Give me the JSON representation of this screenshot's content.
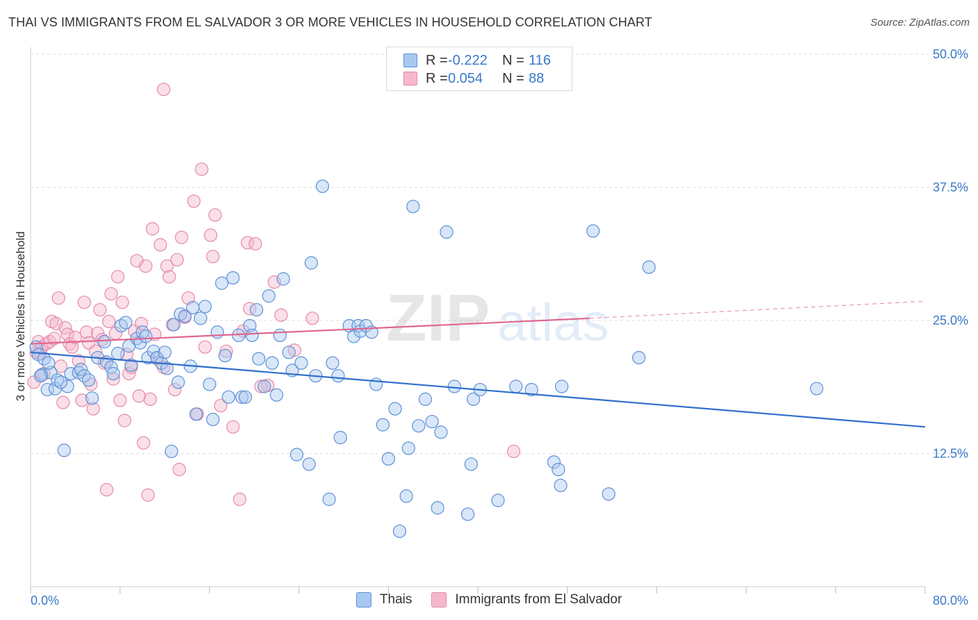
{
  "title": "THAI VS IMMIGRANTS FROM EL SALVADOR 3 OR MORE VEHICLES IN HOUSEHOLD CORRELATION CHART",
  "source_label": "Source:",
  "source_name": "ZipAtlas.com",
  "watermark": {
    "zip": "ZIP",
    "atlas": "atlas"
  },
  "colors": {
    "blue_fill": "#a8c8f0",
    "blue_stroke": "#5d90d6",
    "blue_line": "#2f6fcc",
    "pink_fill": "#f5b8cb",
    "pink_stroke": "#e48aa8",
    "pink_line": "#e0668f",
    "axis_text": "#3a78c9",
    "grid": "#dddddd"
  },
  "legend": {
    "rows": [
      {
        "r_label": "R =",
        "r_value": "-0.222",
        "n_label": "N =",
        "n_value": "116"
      },
      {
        "r_label": "R =",
        "r_value": "0.054",
        "n_label": "N =",
        "n_value": "88"
      }
    ]
  },
  "bottom_legend": {
    "series1": "Thais",
    "series2": "Immigrants from El Salvador"
  },
  "chart_data": {
    "type": "scatter",
    "title": "THAI VS IMMIGRANTS FROM EL SALVADOR 3 OR MORE VEHICLES IN HOUSEHOLD CORRELATION CHART",
    "xlabel": "",
    "ylabel": "3 or more Vehicles in Household",
    "xlim": [
      0,
      80
    ],
    "ylim": [
      0,
      50
    ],
    "x_tick_labels": [
      "0.0%",
      "80.0%"
    ],
    "y_ticks": [
      12.5,
      25.0,
      37.5,
      50.0
    ],
    "y_tick_labels": [
      "12.5%",
      "25.0%",
      "37.5%",
      "50.0%"
    ],
    "grid": true,
    "legend_position": "top-center",
    "series": [
      {
        "name": "Thais",
        "R": -0.222,
        "N": 116,
        "trend": {
          "x": [
            0,
            80
          ],
          "y": [
            22.0,
            15.0
          ]
        },
        "points": [
          [
            0.5,
            22.5
          ],
          [
            0.7,
            21.8
          ],
          [
            1.0,
            19.9
          ],
          [
            1.2,
            21.4
          ],
          [
            1.5,
            18.5
          ],
          [
            1.8,
            20.1
          ],
          [
            2.2,
            18.6
          ],
          [
            2.4,
            19.4
          ],
          [
            3.0,
            12.8
          ],
          [
            3.3,
            18.8
          ],
          [
            3.6,
            20.0
          ],
          [
            4.3,
            20.1
          ],
          [
            4.5,
            20.4
          ],
          [
            4.8,
            19.8
          ],
          [
            5.2,
            19.4
          ],
          [
            5.5,
            17.7
          ],
          [
            6.0,
            21.5
          ],
          [
            6.6,
            23.0
          ],
          [
            6.8,
            21.1
          ],
          [
            7.2,
            20.6
          ],
          [
            7.4,
            20.0
          ],
          [
            7.8,
            21.9
          ],
          [
            8.1,
            24.5
          ],
          [
            8.5,
            24.8
          ],
          [
            8.8,
            22.6
          ],
          [
            9.0,
            20.8
          ],
          [
            9.5,
            23.3
          ],
          [
            9.8,
            22.9
          ],
          [
            10.0,
            23.9
          ],
          [
            10.3,
            23.5
          ],
          [
            10.5,
            21.5
          ],
          [
            11.0,
            22.1
          ],
          [
            11.3,
            21.5
          ],
          [
            11.7,
            21.0
          ],
          [
            12.0,
            22.0
          ],
          [
            12.2,
            20.5
          ],
          [
            12.6,
            12.7
          ],
          [
            12.8,
            24.6
          ],
          [
            13.2,
            19.2
          ],
          [
            13.4,
            25.6
          ],
          [
            13.8,
            25.4
          ],
          [
            14.3,
            20.7
          ],
          [
            14.5,
            26.2
          ],
          [
            14.8,
            16.2
          ],
          [
            15.2,
            25.2
          ],
          [
            15.6,
            26.3
          ],
          [
            16.0,
            19.0
          ],
          [
            16.3,
            15.7
          ],
          [
            16.7,
            23.9
          ],
          [
            17.1,
            28.5
          ],
          [
            17.4,
            21.7
          ],
          [
            17.7,
            17.8
          ],
          [
            18.1,
            29.0
          ],
          [
            18.6,
            23.6
          ],
          [
            18.9,
            17.8
          ],
          [
            19.2,
            17.8
          ],
          [
            19.6,
            24.5
          ],
          [
            19.8,
            23.6
          ],
          [
            20.2,
            26.0
          ],
          [
            20.4,
            21.4
          ],
          [
            20.9,
            18.8
          ],
          [
            21.3,
            27.3
          ],
          [
            21.6,
            21.0
          ],
          [
            22.0,
            18.0
          ],
          [
            22.3,
            23.6
          ],
          [
            22.6,
            28.9
          ],
          [
            23.1,
            22.0
          ],
          [
            23.4,
            20.3
          ],
          [
            23.8,
            12.4
          ],
          [
            24.2,
            21.0
          ],
          [
            24.9,
            11.5
          ],
          [
            25.1,
            30.4
          ],
          [
            25.5,
            19.8
          ],
          [
            26.1,
            37.6
          ],
          [
            26.7,
            8.2
          ],
          [
            27.0,
            21.0
          ],
          [
            27.5,
            19.8
          ],
          [
            27.7,
            14.0
          ],
          [
            28.5,
            24.5
          ],
          [
            28.9,
            23.5
          ],
          [
            29.3,
            24.5
          ],
          [
            29.5,
            24.0
          ],
          [
            30.0,
            24.5
          ],
          [
            30.5,
            23.9
          ],
          [
            30.9,
            19.0
          ],
          [
            31.5,
            15.2
          ],
          [
            32.0,
            12.0
          ],
          [
            32.6,
            16.7
          ],
          [
            33.0,
            5.2
          ],
          [
            33.6,
            8.5
          ],
          [
            33.8,
            13.0
          ],
          [
            34.2,
            35.7
          ],
          [
            34.7,
            15.1
          ],
          [
            35.3,
            17.6
          ],
          [
            35.9,
            15.5
          ],
          [
            36.4,
            7.4
          ],
          [
            36.7,
            14.5
          ],
          [
            37.2,
            33.3
          ],
          [
            37.9,
            18.8
          ],
          [
            39.1,
            6.8
          ],
          [
            39.4,
            11.5
          ],
          [
            39.6,
            17.6
          ],
          [
            40.2,
            18.5
          ],
          [
            41.8,
            8.1
          ],
          [
            43.4,
            18.8
          ],
          [
            44.8,
            18.5
          ],
          [
            46.8,
            11.7
          ],
          [
            47.2,
            11.0
          ],
          [
            47.4,
            9.5
          ],
          [
            47.5,
            18.8
          ],
          [
            50.3,
            33.4
          ],
          [
            51.7,
            8.7
          ],
          [
            54.4,
            21.5
          ],
          [
            55.3,
            30.0
          ],
          [
            70.3,
            18.6
          ],
          [
            0.9,
            19.8
          ],
          [
            1.6,
            21.0
          ],
          [
            2.7,
            19.2
          ]
        ]
      },
      {
        "name": "Immigrants from El Salvador",
        "R": 0.054,
        "N": 88,
        "trend": {
          "x": [
            0,
            50
          ],
          "y": [
            22.8,
            25.2
          ]
        },
        "trend_dashed": {
          "x": [
            50,
            80
          ],
          "y": [
            25.2,
            26.8
          ]
        },
        "points": [
          [
            0.3,
            19.2
          ],
          [
            0.5,
            22.0
          ],
          [
            0.7,
            23.0
          ],
          [
            0.9,
            21.9
          ],
          [
            1.0,
            22.5
          ],
          [
            1.2,
            20.0
          ],
          [
            1.4,
            22.8
          ],
          [
            1.7,
            23.0
          ],
          [
            1.9,
            24.9
          ],
          [
            2.1,
            23.3
          ],
          [
            2.3,
            24.7
          ],
          [
            2.5,
            27.1
          ],
          [
            2.7,
            20.7
          ],
          [
            2.9,
            17.3
          ],
          [
            3.1,
            24.3
          ],
          [
            3.3,
            23.7
          ],
          [
            3.5,
            22.8
          ],
          [
            3.7,
            22.5
          ],
          [
            4.0,
            23.4
          ],
          [
            4.3,
            21.2
          ],
          [
            4.6,
            17.5
          ],
          [
            4.8,
            26.7
          ],
          [
            5.0,
            23.9
          ],
          [
            5.2,
            22.9
          ],
          [
            5.4,
            19.0
          ],
          [
            5.6,
            16.7
          ],
          [
            5.8,
            22.1
          ],
          [
            6.0,
            23.8
          ],
          [
            6.2,
            26.0
          ],
          [
            6.4,
            23.2
          ],
          [
            6.6,
            21.0
          ],
          [
            6.8,
            9.1
          ],
          [
            7.0,
            24.9
          ],
          [
            7.2,
            27.5
          ],
          [
            7.4,
            19.5
          ],
          [
            7.6,
            23.8
          ],
          [
            7.8,
            29.1
          ],
          [
            8.0,
            17.5
          ],
          [
            8.2,
            26.7
          ],
          [
            8.4,
            15.6
          ],
          [
            8.6,
            21.8
          ],
          [
            8.8,
            20.0
          ],
          [
            9.0,
            20.6
          ],
          [
            9.3,
            24.0
          ],
          [
            9.5,
            30.6
          ],
          [
            9.7,
            17.9
          ],
          [
            9.9,
            24.7
          ],
          [
            10.1,
            13.5
          ],
          [
            10.3,
            30.1
          ],
          [
            10.5,
            8.6
          ],
          [
            10.7,
            17.6
          ],
          [
            10.9,
            33.6
          ],
          [
            11.1,
            23.7
          ],
          [
            11.3,
            21.4
          ],
          [
            11.6,
            32.1
          ],
          [
            11.9,
            20.6
          ],
          [
            11.9,
            46.7
          ],
          [
            12.2,
            30.1
          ],
          [
            12.4,
            29.1
          ],
          [
            12.7,
            24.6
          ],
          [
            12.9,
            18.5
          ],
          [
            13.1,
            30.7
          ],
          [
            13.3,
            11.0
          ],
          [
            13.5,
            32.8
          ],
          [
            13.8,
            25.3
          ],
          [
            14.1,
            27.1
          ],
          [
            14.6,
            36.2
          ],
          [
            14.9,
            16.2
          ],
          [
            15.3,
            39.2
          ],
          [
            15.6,
            22.5
          ],
          [
            16.1,
            33.0
          ],
          [
            16.3,
            31.0
          ],
          [
            16.5,
            34.9
          ],
          [
            17.0,
            17.0
          ],
          [
            17.5,
            22.1
          ],
          [
            18.1,
            15.0
          ],
          [
            18.7,
            8.2
          ],
          [
            19.0,
            24.0
          ],
          [
            19.4,
            32.3
          ],
          [
            19.6,
            26.1
          ],
          [
            20.1,
            32.2
          ],
          [
            21.2,
            18.9
          ],
          [
            21.8,
            28.6
          ],
          [
            22.4,
            25.5
          ],
          [
            23.6,
            22.2
          ],
          [
            25.2,
            25.2
          ],
          [
            43.2,
            12.7
          ],
          [
            20.6,
            18.8
          ]
        ]
      }
    ]
  }
}
